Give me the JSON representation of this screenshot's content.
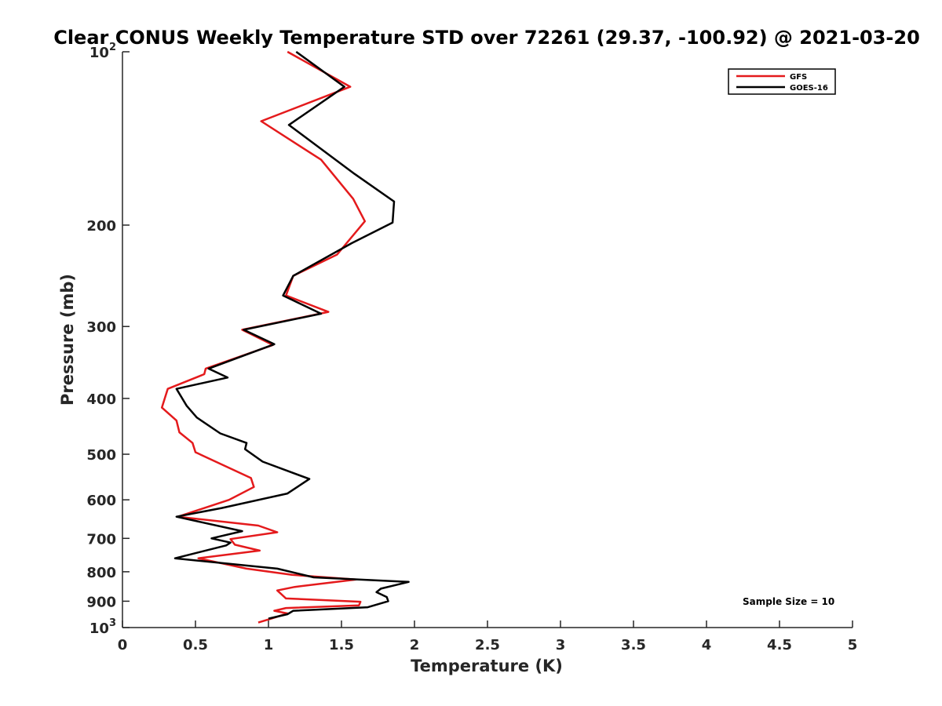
{
  "chart_data": {
    "type": "line",
    "title": "Clear CONUS Weekly Temperature STD over 72261 (29.37, -100.92) @ 2021-03-20",
    "xlabel": "Temperature (K)",
    "ylabel": "Pressure (mb)",
    "xlim": [
      0,
      5
    ],
    "ylim": [
      100,
      1000
    ],
    "y_scale": "log",
    "y_reversed": true,
    "grid": false,
    "legend_position": "top-right",
    "x_ticks": [
      0,
      0.5,
      1,
      1.5,
      2,
      2.5,
      3,
      3.5,
      4,
      4.5,
      5
    ],
    "x_tick_labels": [
      "0",
      "0.5",
      "1",
      "1.5",
      "2",
      "2.5",
      "3",
      "3.5",
      "4",
      "4.5",
      "5"
    ],
    "y_ticks": [
      100,
      200,
      300,
      400,
      500,
      600,
      700,
      800,
      900,
      1000
    ],
    "y_tick_labels": [
      {
        "base": "10",
        "exp": "2"
      },
      {
        "base": "200",
        "exp": ""
      },
      {
        "base": "300",
        "exp": ""
      },
      {
        "base": "400",
        "exp": ""
      },
      {
        "base": "500",
        "exp": ""
      },
      {
        "base": "600",
        "exp": ""
      },
      {
        "base": "700",
        "exp": ""
      },
      {
        "base": "800",
        "exp": ""
      },
      {
        "base": "900",
        "exp": ""
      },
      {
        "base": "10",
        "exp": "3"
      }
    ],
    "annotation": "Sample Size = 10",
    "series": [
      {
        "name": "GFS",
        "color": "#e41a1c",
        "points": [
          [
            1.13,
            100
          ],
          [
            1.56,
            115
          ],
          [
            0.95,
            132
          ],
          [
            1.36,
            154
          ],
          [
            1.58,
            180
          ],
          [
            1.66,
            197
          ],
          [
            1.47,
            225
          ],
          [
            1.17,
            245
          ],
          [
            1.12,
            265
          ],
          [
            1.41,
            283
          ],
          [
            0.82,
            304
          ],
          [
            1.03,
            323
          ],
          [
            0.57,
            355
          ],
          [
            0.56,
            363
          ],
          [
            0.31,
            385
          ],
          [
            0.27,
            415
          ],
          [
            0.37,
            437
          ],
          [
            0.39,
            458
          ],
          [
            0.48,
            478
          ],
          [
            0.5,
            496
          ],
          [
            0.88,
            550
          ],
          [
            0.9,
            570
          ],
          [
            0.73,
            600
          ],
          [
            0.38,
            642
          ],
          [
            0.93,
            665
          ],
          [
            1.06,
            683
          ],
          [
            0.74,
            702
          ],
          [
            0.77,
            718
          ],
          [
            0.94,
            735
          ],
          [
            0.52,
            758
          ],
          [
            0.85,
            790
          ],
          [
            1.16,
            810
          ],
          [
            1.6,
            825
          ],
          [
            1.18,
            850
          ],
          [
            1.06,
            862
          ],
          [
            1.12,
            890
          ],
          [
            1.63,
            902
          ],
          [
            1.62,
            915
          ],
          [
            1.12,
            925
          ],
          [
            1.04,
            935
          ],
          [
            1.13,
            945
          ],
          [
            1.02,
            965
          ],
          [
            0.93,
            980
          ]
        ]
      },
      {
        "name": "GOES-16",
        "color": "#000000",
        "points": [
          [
            1.19,
            100
          ],
          [
            1.52,
            115
          ],
          [
            1.14,
            134
          ],
          [
            1.59,
            163
          ],
          [
            1.86,
            182
          ],
          [
            1.85,
            198
          ],
          [
            1.57,
            215
          ],
          [
            1.17,
            245
          ],
          [
            1.1,
            265
          ],
          [
            1.36,
            285
          ],
          [
            0.83,
            304
          ],
          [
            1.04,
            322
          ],
          [
            0.59,
            355
          ],
          [
            0.72,
            368
          ],
          [
            0.37,
            385
          ],
          [
            0.44,
            412
          ],
          [
            0.51,
            432
          ],
          [
            0.67,
            460
          ],
          [
            0.85,
            478
          ],
          [
            0.84,
            490
          ],
          [
            0.96,
            515
          ],
          [
            1.28,
            552
          ],
          [
            1.13,
            585
          ],
          [
            0.68,
            620
          ],
          [
            0.37,
            642
          ],
          [
            0.82,
            680
          ],
          [
            0.61,
            700
          ],
          [
            0.74,
            712
          ],
          [
            0.71,
            720
          ],
          [
            0.36,
            758
          ],
          [
            1.06,
            790
          ],
          [
            1.31,
            818
          ],
          [
            1.96,
            833
          ],
          [
            1.77,
            856
          ],
          [
            1.74,
            868
          ],
          [
            1.81,
            885
          ],
          [
            1.82,
            900
          ],
          [
            1.68,
            922
          ],
          [
            1.17,
            935
          ],
          [
            1.13,
            948
          ],
          [
            1.0,
            965
          ]
        ]
      }
    ]
  }
}
